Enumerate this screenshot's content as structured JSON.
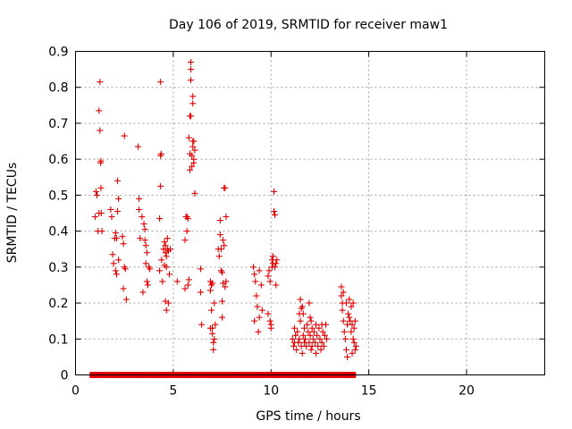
{
  "chart_data": {
    "type": "scatter",
    "title": "Day 106 of 2019, SRMTID for receiver maw1",
    "xlabel": "GPS time / hours",
    "ylabel": "SRMTID / TECUs",
    "xlim": [
      0,
      24
    ],
    "ylim": [
      0,
      0.9
    ],
    "xticks": [
      "0",
      "5",
      "10",
      "15",
      "20"
    ],
    "xtick_values": [
      0,
      5,
      10,
      15,
      20
    ],
    "yticks": [
      "0",
      "0.1",
      "0.2",
      "0.3",
      "0.4",
      "0.5",
      "0.6",
      "0.7",
      "0.8",
      "0.9"
    ],
    "ytick_values": [
      0,
      0.1,
      0.2,
      0.3,
      0.4,
      0.5,
      0.6,
      0.7,
      0.8,
      0.9
    ],
    "grid": true,
    "marker": "plus",
    "color": "#e00000",
    "series": [
      {
        "name": "SRMTID",
        "points": [
          [
            1.0,
            0.44
          ],
          [
            1.05,
            0.51
          ],
          [
            1.1,
            0.5
          ],
          [
            1.15,
            0.4
          ],
          [
            1.2,
            0.735
          ],
          [
            1.25,
            0.815
          ],
          [
            1.25,
            0.68
          ],
          [
            1.28,
            0.59
          ],
          [
            1.3,
            0.595
          ],
          [
            1.3,
            0.52
          ],
          [
            1.32,
            0.45
          ],
          [
            1.35,
            0.4
          ],
          [
            1.2,
            0.45
          ],
          [
            1.8,
            0.46
          ],
          [
            1.85,
            0.44
          ],
          [
            1.9,
            0.335
          ],
          [
            1.95,
            0.31
          ],
          [
            2.0,
            0.38
          ],
          [
            2.05,
            0.29
          ],
          [
            2.05,
            0.395
          ],
          [
            2.1,
            0.38
          ],
          [
            2.1,
            0.28
          ],
          [
            2.15,
            0.54
          ],
          [
            2.15,
            0.455
          ],
          [
            2.2,
            0.49
          ],
          [
            2.2,
            0.32
          ],
          [
            2.4,
            0.385
          ],
          [
            2.45,
            0.365
          ],
          [
            2.45,
            0.24
          ],
          [
            2.5,
            0.3
          ],
          [
            2.5,
            0.665
          ],
          [
            2.55,
            0.295
          ],
          [
            2.6,
            0.21
          ],
          [
            3.2,
            0.635
          ],
          [
            3.25,
            0.49
          ],
          [
            3.25,
            0.46
          ],
          [
            3.3,
            0.38
          ],
          [
            3.4,
            0.44
          ],
          [
            3.45,
            0.23
          ],
          [
            3.5,
            0.42
          ],
          [
            3.55,
            0.405
          ],
          [
            3.55,
            0.375
          ],
          [
            3.6,
            0.36
          ],
          [
            3.6,
            0.31
          ],
          [
            3.65,
            0.34
          ],
          [
            3.65,
            0.26
          ],
          [
            3.7,
            0.25
          ],
          [
            3.75,
            0.3
          ],
          [
            3.8,
            0.295
          ],
          [
            4.3,
            0.29
          ],
          [
            4.3,
            0.435
          ],
          [
            4.35,
            0.815
          ],
          [
            4.35,
            0.61
          ],
          [
            4.35,
            0.525
          ],
          [
            4.38,
            0.615
          ],
          [
            4.4,
            0.32
          ],
          [
            4.45,
            0.26
          ],
          [
            4.5,
            0.35
          ],
          [
            4.55,
            0.305
          ],
          [
            4.55,
            0.37
          ],
          [
            4.6,
            0.36
          ],
          [
            4.6,
            0.34
          ],
          [
            4.6,
            0.205
          ],
          [
            4.65,
            0.33
          ],
          [
            4.65,
            0.3
          ],
          [
            4.65,
            0.18
          ],
          [
            4.7,
            0.38
          ],
          [
            4.7,
            0.35
          ],
          [
            4.75,
            0.345
          ],
          [
            4.75,
            0.2
          ],
          [
            4.8,
            0.28
          ],
          [
            4.85,
            0.35
          ],
          [
            5.2,
            0.26
          ],
          [
            5.6,
            0.375
          ],
          [
            5.6,
            0.24
          ],
          [
            5.65,
            0.44
          ],
          [
            5.7,
            0.44
          ],
          [
            5.7,
            0.4
          ],
          [
            5.75,
            0.435
          ],
          [
            5.75,
            0.25
          ],
          [
            5.8,
            0.265
          ],
          [
            5.8,
            0.66
          ],
          [
            5.85,
            0.72
          ],
          [
            5.85,
            0.615
          ],
          [
            5.85,
            0.57
          ],
          [
            5.9,
            0.87
          ],
          [
            5.9,
            0.85
          ],
          [
            5.9,
            0.82
          ],
          [
            5.9,
            0.72
          ],
          [
            5.95,
            0.58
          ],
          [
            5.95,
            0.61
          ],
          [
            6.0,
            0.775
          ],
          [
            6.0,
            0.755
          ],
          [
            6.0,
            0.65
          ],
          [
            6.0,
            0.635
          ],
          [
            6.05,
            0.65
          ],
          [
            6.05,
            0.6
          ],
          [
            6.05,
            0.59
          ],
          [
            6.1,
            0.625
          ],
          [
            6.1,
            0.505
          ],
          [
            6.4,
            0.295
          ],
          [
            6.4,
            0.23
          ],
          [
            6.45,
            0.14
          ],
          [
            6.9,
            0.26
          ],
          [
            6.9,
            0.235
          ],
          [
            6.9,
            0.13
          ],
          [
            6.95,
            0.25
          ],
          [
            6.95,
            0.18
          ],
          [
            7.0,
            0.255
          ],
          [
            7.0,
            0.13
          ],
          [
            7.0,
            0.115
          ],
          [
            7.05,
            0.09
          ],
          [
            7.05,
            0.07
          ],
          [
            7.1,
            0.1
          ],
          [
            7.1,
            0.2
          ],
          [
            7.15,
            0.14
          ],
          [
            7.3,
            0.35
          ],
          [
            7.35,
            0.33
          ],
          [
            7.4,
            0.43
          ],
          [
            7.4,
            0.39
          ],
          [
            7.45,
            0.35
          ],
          [
            7.45,
            0.29
          ],
          [
            7.5,
            0.285
          ],
          [
            7.5,
            0.16
          ],
          [
            7.55,
            0.375
          ],
          [
            7.55,
            0.255
          ],
          [
            7.6,
            0.52
          ],
          [
            7.6,
            0.36
          ],
          [
            7.65,
            0.52
          ],
          [
            7.65,
            0.245
          ],
          [
            7.7,
            0.44
          ],
          [
            7.7,
            0.26
          ],
          [
            7.5,
            0.205
          ],
          [
            9.1,
            0.3
          ],
          [
            9.15,
            0.28
          ],
          [
            9.15,
            0.15
          ],
          [
            9.2,
            0.26
          ],
          [
            9.25,
            0.22
          ],
          [
            9.3,
            0.19
          ],
          [
            9.35,
            0.12
          ],
          [
            9.4,
            0.29
          ],
          [
            9.4,
            0.16
          ],
          [
            9.5,
            0.25
          ],
          [
            9.55,
            0.18
          ],
          [
            9.85,
            0.275
          ],
          [
            9.85,
            0.17
          ],
          [
            9.9,
            0.29
          ],
          [
            9.95,
            0.26
          ],
          [
            9.95,
            0.15
          ],
          [
            10.0,
            0.14
          ],
          [
            10.0,
            0.13
          ],
          [
            10.05,
            0.32
          ],
          [
            10.05,
            0.3
          ],
          [
            10.1,
            0.33
          ],
          [
            10.1,
            0.31
          ],
          [
            10.15,
            0.51
          ],
          [
            10.15,
            0.455
          ],
          [
            10.2,
            0.445
          ],
          [
            10.2,
            0.3
          ],
          [
            10.25,
            0.31
          ],
          [
            10.25,
            0.25
          ],
          [
            10.3,
            0.32
          ],
          [
            11.1,
            0.1
          ],
          [
            11.15,
            0.08
          ],
          [
            11.2,
            0.13
          ],
          [
            11.2,
            0.09
          ],
          [
            11.25,
            0.11
          ],
          [
            11.3,
            0.07
          ],
          [
            11.35,
            0.12
          ],
          [
            11.4,
            0.09
          ],
          [
            11.45,
            0.17
          ],
          [
            11.45,
            0.1
          ],
          [
            11.5,
            0.21
          ],
          [
            11.5,
            0.15
          ],
          [
            11.55,
            0.185
          ],
          [
            11.55,
            0.08
          ],
          [
            11.6,
            0.19
          ],
          [
            11.6,
            0.06
          ],
          [
            11.65,
            0.17
          ],
          [
            11.65,
            0.11
          ],
          [
            11.7,
            0.13
          ],
          [
            11.7,
            0.09
          ],
          [
            11.75,
            0.1
          ],
          [
            11.8,
            0.08
          ],
          [
            11.85,
            0.14
          ],
          [
            11.9,
            0.12
          ],
          [
            11.95,
            0.2
          ],
          [
            11.95,
            0.09
          ],
          [
            12.0,
            0.16
          ],
          [
            12.0,
            0.11
          ],
          [
            12.05,
            0.15
          ],
          [
            12.05,
            0.07
          ],
          [
            12.1,
            0.13
          ],
          [
            12.1,
            0.08
          ],
          [
            12.15,
            0.1
          ],
          [
            12.2,
            0.12
          ],
          [
            12.25,
            0.09
          ],
          [
            12.3,
            0.14
          ],
          [
            12.3,
            0.06
          ],
          [
            12.35,
            0.11
          ],
          [
            12.4,
            0.08
          ],
          [
            12.45,
            0.13
          ],
          [
            12.5,
            0.1
          ],
          [
            12.55,
            0.07
          ],
          [
            12.6,
            0.14
          ],
          [
            12.6,
            0.09
          ],
          [
            12.65,
            0.12
          ],
          [
            12.7,
            0.08
          ],
          [
            12.75,
            0.11
          ],
          [
            12.8,
            0.14
          ],
          [
            12.85,
            0.1
          ],
          [
            13.6,
            0.245
          ],
          [
            13.6,
            0.22
          ],
          [
            13.65,
            0.2
          ],
          [
            13.65,
            0.18
          ],
          [
            13.7,
            0.23
          ],
          [
            13.7,
            0.15
          ],
          [
            13.75,
            0.12
          ],
          [
            13.8,
            0.1
          ],
          [
            13.85,
            0.07
          ],
          [
            13.85,
            0.2
          ],
          [
            13.9,
            0.14
          ],
          [
            13.9,
            0.05
          ],
          [
            13.95,
            0.17
          ],
          [
            14.0,
            0.16
          ],
          [
            14.0,
            0.21
          ],
          [
            14.05,
            0.15
          ],
          [
            14.1,
            0.19
          ],
          [
            14.1,
            0.12
          ],
          [
            14.15,
            0.14
          ],
          [
            14.15,
            0.06
          ],
          [
            14.2,
            0.2
          ],
          [
            14.2,
            0.1
          ],
          [
            14.25,
            0.13
          ],
          [
            14.25,
            0.09
          ],
          [
            14.3,
            0.07
          ],
          [
            14.3,
            0.15
          ],
          [
            14.35,
            0.08
          ]
        ]
      },
      {
        "name": "SRMTID zero band",
        "x_range": [
          0.75,
          14.35
        ],
        "y": 0
      }
    ]
  }
}
